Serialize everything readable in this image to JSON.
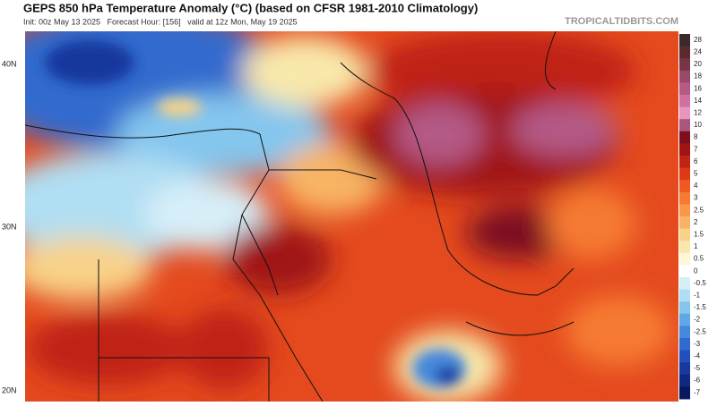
{
  "header": {
    "title": "GEPS 850 hPa Temperature Anomaly (°C) (based on CFSR 1981-2010 Climatology)",
    "subtitle": "Init: 00z May 13 2025   Forecast Hour: [156]   valid at 12z Mon, May 19 2025",
    "source": "TROPICALTIDBITS.COM"
  },
  "map": {
    "latitude_labels": [
      "40N",
      "30N",
      "20N"
    ]
  },
  "legend": {
    "levels": [
      {
        "value": 28,
        "color": "#3a2a2a"
      },
      {
        "value": 24,
        "color": "#5a2a2e"
      },
      {
        "value": 20,
        "color": "#7a3448"
      },
      {
        "value": 18,
        "color": "#984a68"
      },
      {
        "value": 16,
        "color": "#b45a86"
      },
      {
        "value": 14,
        "color": "#d070a2"
      },
      {
        "value": 12,
        "color": "#e894bc"
      },
      {
        "value": 10,
        "color": "#a8587e"
      },
      {
        "value": 8,
        "color": "#7c1020"
      },
      {
        "value": 7,
        "color": "#a01414"
      },
      {
        "value": 6,
        "color": "#c02412"
      },
      {
        "value": 5,
        "color": "#dc3a14"
      },
      {
        "value": 4,
        "color": "#ee5a22"
      },
      {
        "value": 3,
        "color": "#f67a32"
      },
      {
        "value": 2.5,
        "color": "#f89848"
      },
      {
        "value": 2,
        "color": "#f8b464"
      },
      {
        "value": 1.5,
        "color": "#f8d288"
      },
      {
        "value": 1,
        "color": "#f8e8aa"
      },
      {
        "value": 0.5,
        "color": "#fff6da"
      },
      {
        "value": 0,
        "color": "#ffffff"
      },
      {
        "value": -0.5,
        "color": "#d6eef8"
      },
      {
        "value": -1,
        "color": "#b0def2"
      },
      {
        "value": -1.5,
        "color": "#84c6ee"
      },
      {
        "value": -2,
        "color": "#5ea8e6"
      },
      {
        "value": -2.5,
        "color": "#4688dc"
      },
      {
        "value": -3,
        "color": "#306ace"
      },
      {
        "value": -4,
        "color": "#2050bc"
      },
      {
        "value": -5,
        "color": "#18389e"
      },
      {
        "value": -6,
        "color": "#10287e"
      },
      {
        "value": -7,
        "color": "#08185e"
      }
    ]
  }
}
